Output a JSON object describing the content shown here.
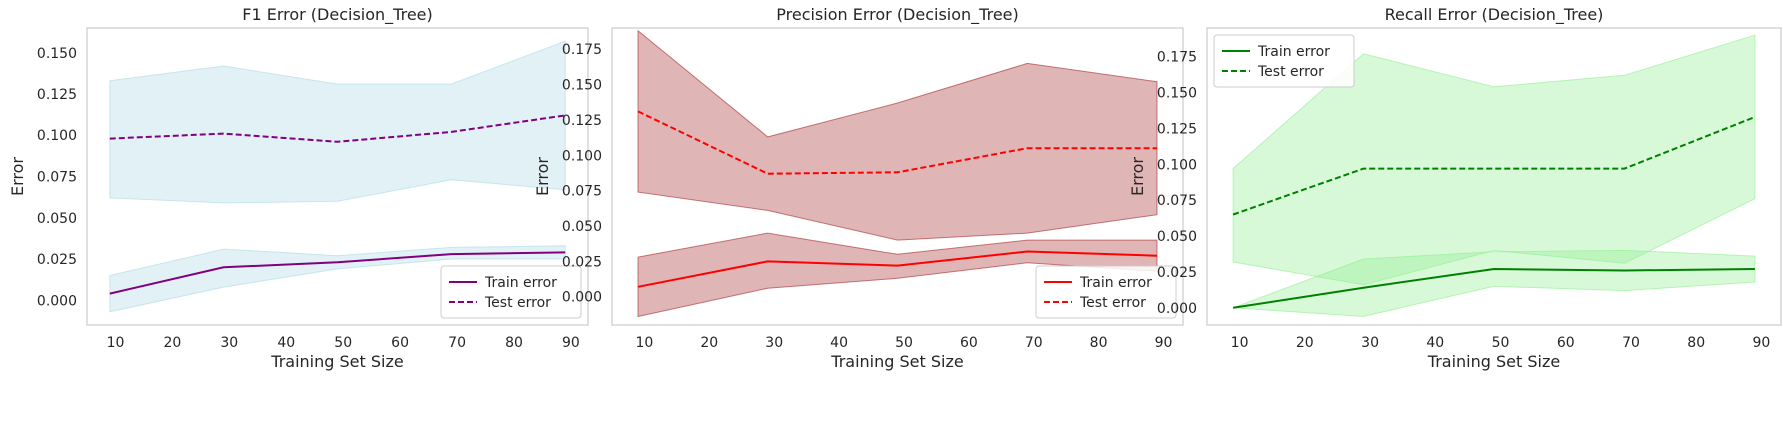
{
  "chart_data": [
    {
      "type": "line",
      "title": "F1 Error (Decision_Tree)",
      "xlabel": "Training Set Size",
      "ylabel": "Error",
      "x": [
        9,
        29,
        49,
        69,
        89
      ],
      "xlim": [
        5,
        93
      ],
      "ylim": [
        -0.015,
        0.165
      ],
      "xticks": [
        10,
        20,
        30,
        40,
        50,
        60,
        70,
        80,
        90
      ],
      "yticks": [
        0.0,
        0.025,
        0.05,
        0.075,
        0.1,
        0.125,
        0.15
      ],
      "ytick_labels": [
        "0.000",
        "0.025",
        "0.050",
        "0.075",
        "0.100",
        "0.125",
        "0.150"
      ],
      "grid": false,
      "legend": "lower-right",
      "band_color": "#add8e6",
      "band_alpha": 0.35,
      "band_edge": "#add8e6",
      "series": [
        {
          "name": "Train error",
          "style": "solid",
          "color": "#800080",
          "values": [
            0.004,
            0.02,
            0.023,
            0.028,
            0.029
          ],
          "lower": [
            -0.007,
            0.008,
            0.019,
            0.025,
            0.025
          ],
          "upper": [
            0.015,
            0.031,
            0.027,
            0.032,
            0.033
          ]
        },
        {
          "name": "Test error",
          "style": "dashed",
          "color": "#800080",
          "values": [
            0.098,
            0.101,
            0.096,
            0.102,
            0.112
          ],
          "lower": [
            0.062,
            0.059,
            0.06,
            0.073,
            0.067
          ],
          "upper": [
            0.133,
            0.142,
            0.131,
            0.131,
            0.157
          ]
        }
      ]
    },
    {
      "type": "line",
      "title": "Precision Error (Decision_Tree)",
      "xlabel": "Training Set Size",
      "ylabel": "Error",
      "x": [
        9,
        29,
        49,
        69,
        89
      ],
      "xlim": [
        5,
        93
      ],
      "ylim": [
        -0.02,
        0.19
      ],
      "xticks": [
        10,
        20,
        30,
        40,
        50,
        60,
        70,
        80,
        90
      ],
      "yticks": [
        0.0,
        0.025,
        0.05,
        0.075,
        0.1,
        0.125,
        0.15,
        0.175
      ],
      "ytick_labels": [
        "0.000",
        "0.025",
        "0.050",
        "0.075",
        "0.100",
        "0.125",
        "0.150",
        "0.175"
      ],
      "grid": false,
      "legend": "lower-right",
      "band_color": "#a52a2a",
      "band_alpha": 0.35,
      "band_edge": "#a52a2a",
      "series": [
        {
          "name": "Train error",
          "style": "solid",
          "color": "#ff0000",
          "values": [
            0.007,
            0.025,
            0.022,
            0.032,
            0.029
          ],
          "lower": [
            -0.014,
            0.006,
            0.013,
            0.024,
            0.018
          ],
          "upper": [
            0.028,
            0.045,
            0.03,
            0.04,
            0.04
          ]
        },
        {
          "name": "Test error",
          "style": "dashed",
          "color": "#ff0000",
          "values": [
            0.131,
            0.087,
            0.088,
            0.105,
            0.105
          ],
          "lower": [
            0.074,
            0.061,
            0.04,
            0.045,
            0.058
          ],
          "upper": [
            0.188,
            0.113,
            0.137,
            0.165,
            0.152
          ]
        }
      ]
    },
    {
      "type": "line",
      "title": "Recall Error (Decision_Tree)",
      "xlabel": "Training Set Size",
      "ylabel": "Error",
      "x": [
        9,
        29,
        49,
        69,
        89
      ],
      "xlim": [
        5,
        93
      ],
      "ylim": [
        -0.012,
        0.195
      ],
      "xticks": [
        10,
        20,
        30,
        40,
        50,
        60,
        70,
        80,
        90
      ],
      "yticks": [
        0.0,
        0.025,
        0.05,
        0.075,
        0.1,
        0.125,
        0.15,
        0.175
      ],
      "ytick_labels": [
        "0.000",
        "0.025",
        "0.050",
        "0.075",
        "0.100",
        "0.125",
        "0.150",
        "0.175"
      ],
      "grid": false,
      "legend": "upper-left",
      "band_color": "#90ee90",
      "band_alpha": 0.35,
      "band_edge": "#90ee90",
      "series": [
        {
          "name": "Train error",
          "style": "solid",
          "color": "#008000",
          "values": [
            0.0,
            0.014,
            0.027,
            0.026,
            0.027
          ],
          "lower": [
            0.0,
            -0.006,
            0.015,
            0.012,
            0.018
          ],
          "upper": [
            0.0,
            0.034,
            0.039,
            0.04,
            0.036
          ]
        },
        {
          "name": "Test error",
          "style": "dashed",
          "color": "#008000",
          "values": [
            0.065,
            0.097,
            0.097,
            0.097,
            0.133
          ],
          "lower": [
            0.032,
            0.016,
            0.04,
            0.031,
            0.076
          ],
          "upper": [
            0.097,
            0.177,
            0.154,
            0.162,
            0.19
          ]
        }
      ]
    }
  ]
}
